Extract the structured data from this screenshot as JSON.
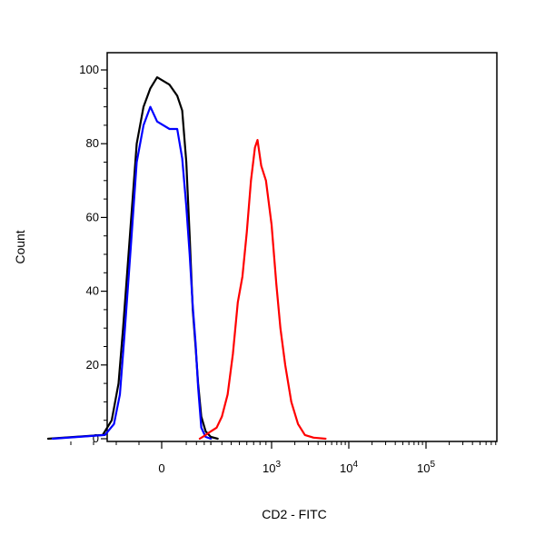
{
  "chart_data": {
    "type": "line",
    "title": "",
    "xlabel": "CD2 - FITC",
    "ylabel": "Count",
    "ylim": [
      0,
      100
    ],
    "y_ticks": [
      0,
      20,
      40,
      60,
      80,
      100
    ],
    "x_scale": "biexponential",
    "x_ticks": [
      {
        "value": 0,
        "label": "0"
      },
      {
        "value": 1000,
        "label": "10",
        "exp": "3"
      },
      {
        "value": 10000,
        "label": "10",
        "exp": "4"
      },
      {
        "value": 100000,
        "label": "10",
        "exp": "5"
      }
    ],
    "grid": false,
    "legend": "none",
    "series": [
      {
        "color": "#000000",
        "points": [
          [
            -250,
            0
          ],
          [
            -130,
            1
          ],
          [
            -110,
            5
          ],
          [
            -95,
            15
          ],
          [
            -85,
            30
          ],
          [
            -70,
            55
          ],
          [
            -55,
            80
          ],
          [
            -40,
            90
          ],
          [
            -25,
            95
          ],
          [
            -10,
            98
          ],
          [
            5,
            96
          ],
          [
            20,
            93
          ],
          [
            35,
            89
          ],
          [
            50,
            75
          ],
          [
            65,
            55
          ],
          [
            80,
            35
          ],
          [
            95,
            25
          ],
          [
            110,
            15
          ],
          [
            130,
            6
          ],
          [
            160,
            2
          ],
          [
            200,
            0.5
          ],
          [
            260,
            0
          ]
        ]
      },
      {
        "color": "#0000ff",
        "points": [
          [
            -240,
            0
          ],
          [
            -125,
            1
          ],
          [
            -105,
            4
          ],
          [
            -92,
            12
          ],
          [
            -82,
            28
          ],
          [
            -68,
            52
          ],
          [
            -55,
            75
          ],
          [
            -40,
            85
          ],
          [
            -25,
            90
          ],
          [
            -10,
            86
          ],
          [
            5,
            84
          ],
          [
            20,
            84
          ],
          [
            35,
            76
          ],
          [
            50,
            63
          ],
          [
            65,
            50
          ],
          [
            80,
            36
          ],
          [
            95,
            26
          ],
          [
            110,
            14
          ],
          [
            130,
            3
          ],
          [
            160,
            0.5
          ],
          [
            200,
            0
          ]
        ]
      },
      {
        "color": "#ff0000",
        "points": [
          [
            120,
            0
          ],
          [
            160,
            1
          ],
          [
            200,
            2
          ],
          [
            250,
            3
          ],
          [
            300,
            6
          ],
          [
            360,
            12
          ],
          [
            420,
            23
          ],
          [
            480,
            37
          ],
          [
            540,
            44
          ],
          [
            600,
            56
          ],
          [
            660,
            70
          ],
          [
            720,
            79
          ],
          [
            760,
            81
          ],
          [
            820,
            74
          ],
          [
            900,
            70
          ],
          [
            1000,
            58
          ],
          [
            1150,
            42
          ],
          [
            1300,
            30
          ],
          [
            1500,
            20
          ],
          [
            1800,
            10
          ],
          [
            2200,
            4
          ],
          [
            2700,
            1
          ],
          [
            3500,
            0.3
          ],
          [
            5000,
            0
          ]
        ]
      }
    ]
  }
}
